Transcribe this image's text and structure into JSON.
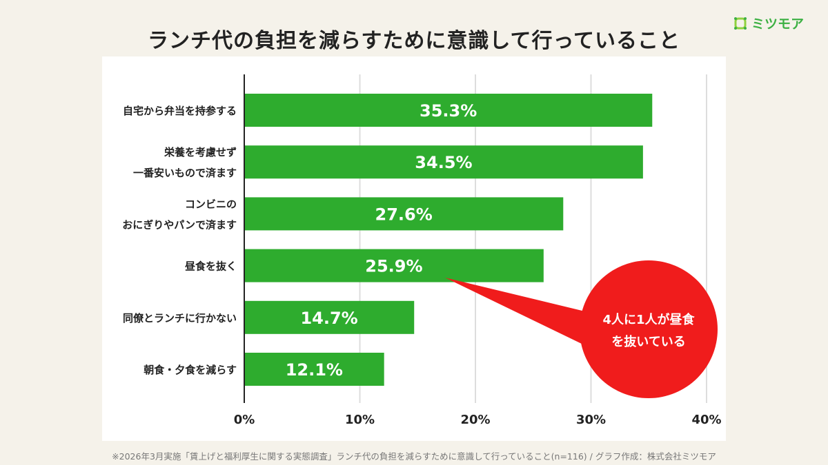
{
  "title": "ランチ代の負担を減らすために意識して行っていること",
  "logo": {
    "text": "ミツモア",
    "icon": "mitsumoa-logo-icon",
    "color": "#3cb043"
  },
  "footnote": "※2026年3月実施「賃上げと福利厚生に関する実態調査」ランチ代の負担を減らすために意識して行っていること(n=116) / グラフ作成：株式会社ミツモア",
  "callout": {
    "lines": [
      "4人に1人が昼食",
      "を抜いている"
    ],
    "color": "#f01c1c"
  },
  "chart_data": {
    "type": "bar",
    "orientation": "horizontal",
    "categories": [
      [
        "自宅から弁当を持参する"
      ],
      [
        "栄養を考慮せず",
        "一番安いもので済ます"
      ],
      [
        "コンビニの",
        "おにぎりやパンで済ます"
      ],
      [
        "昼食を抜く"
      ],
      [
        "同僚とランチに行かない"
      ],
      [
        "朝食・夕食を減らす"
      ]
    ],
    "values": [
      35.3,
      34.5,
      27.6,
      25.9,
      14.7,
      12.1
    ],
    "value_labels": [
      "35.3%",
      "34.5%",
      "27.6%",
      "25.9%",
      "14.7%",
      "12.1%"
    ],
    "xlim": [
      0,
      40
    ],
    "xticks": [
      "0%",
      "10%",
      "20%",
      "30%",
      "40%"
    ],
    "grid": true,
    "bar_color": "#2eac2e"
  }
}
